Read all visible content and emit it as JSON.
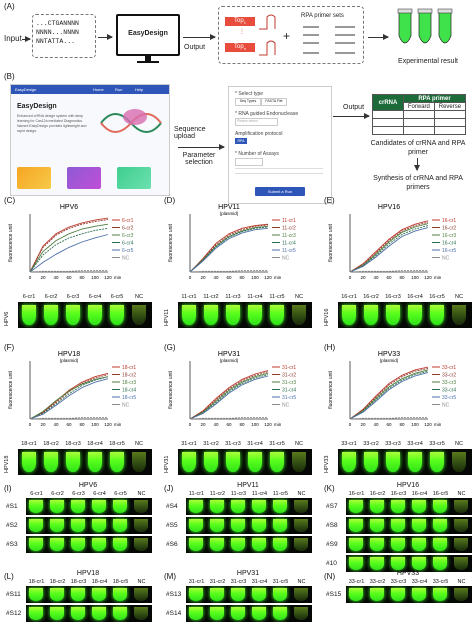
{
  "panelA": {
    "label": "(A)",
    "input_label": "Input",
    "seq_lines": [
      "...CTGANNNN",
      "NNNN...NNNN",
      "NNTATTA..."
    ],
    "tool_name": "EasyDesign",
    "output_label": "Output",
    "top1": "Top",
    "top1_sub": "1",
    "topn": "Top",
    "topn_sub": "n",
    "rpa_sets": "RPA primer sets",
    "experimental": "Experimental result"
  },
  "panelB": {
    "label": "(B)",
    "app_brand": "EasyDesign",
    "app_title": "EasyDesign",
    "app_desc": "Enhanced crRNA design system with deep learning for Cas12a mediated Diagnostics. Named EasyDesign provides lightweight and rapid design.",
    "nav_items": [
      "Home",
      "Run",
      "Help"
    ],
    "seq_upload": "Sequence upload",
    "param_sel": "Parameter selection",
    "form_items": [
      "* Select type",
      "* RNA guided Endonuclease",
      "Amplification protocol",
      "* Number of Assays"
    ],
    "form_tabs": [
      "Seq Types",
      "FASTA File"
    ],
    "form_placeholder": "Please select",
    "form_rpa": "RPA",
    "form_submit": "Submit a Run",
    "output_label": "Output",
    "table_head1": "crRNA",
    "table_head2": "RPA primer",
    "table_sub": [
      "Forward",
      "Reverse"
    ],
    "candidates": "Candidates of crRNA and RPA primer",
    "synthesis": "Synthesis of crRNA and RPA primers"
  },
  "charts": [
    {
      "label": "(C)",
      "title": "HPV6",
      "subtitle": "",
      "series_prefix": "6-cr",
      "names": [
        "6-cr1",
        "6-cr2",
        "6-cr3",
        "6-cr4",
        "6-cr5",
        "NC"
      ],
      "gel_label": "HPV6",
      "lanes": [
        "6-cr1",
        "6-cr2",
        "6-cr3",
        "6-cr4",
        "6-cr5",
        "NC"
      ]
    },
    {
      "label": "(D)",
      "title": "HPV11",
      "subtitle": "(plasmid)",
      "names": [
        "11-cr1",
        "11-cr2",
        "11-cr3",
        "11-cr4",
        "11-cr5",
        "NC"
      ],
      "gel_label": "HPV11",
      "lanes": [
        "11-cr1",
        "11-cr2",
        "11-cr3",
        "11-cr4",
        "11-cr5",
        "NC"
      ]
    },
    {
      "label": "(E)",
      "title": "HPV16",
      "subtitle": "",
      "names": [
        "16-cr1",
        "16-cr2",
        "16-cr3",
        "16-cr4",
        "16-cr5",
        "NC"
      ],
      "gel_label": "HPV16",
      "lanes": [
        "16-cr1",
        "16-cr2",
        "16-cr3",
        "16-cr4",
        "16-cr5",
        "NC"
      ]
    },
    {
      "label": "(F)",
      "title": "HPV18",
      "subtitle": "(plasmid)",
      "names": [
        "18-cr1",
        "18-cr2",
        "18-cr3",
        "18-cr4",
        "18-cr5",
        "NC"
      ],
      "gel_label": "HPV18",
      "lanes": [
        "18-cr1",
        "18-cr2",
        "18-cr3",
        "18-cr4",
        "18-cr5",
        "NC"
      ]
    },
    {
      "label": "(G)",
      "title": "HPV31",
      "subtitle": "(plasmid)",
      "names": [
        "31-cr1",
        "31-cr2",
        "31-cr3",
        "31-cr4",
        "31-cr5",
        "NC"
      ],
      "gel_label": "HPV31",
      "lanes": [
        "31-cr1",
        "31-cr2",
        "31-cr3",
        "31-cr4",
        "31-cr5",
        "NC"
      ]
    },
    {
      "label": "(H)",
      "title": "HPV33",
      "subtitle": "(plasmid)",
      "names": [
        "33-cr1",
        "33-cr2",
        "33-cr3",
        "33-cr4",
        "33-cr5",
        "NC"
      ],
      "gel_label": "HPV33",
      "lanes": [
        "33-cr1",
        "33-cr2",
        "33-cr3",
        "33-cr4",
        "33-cr5",
        "NC"
      ]
    }
  ],
  "chart_data": [
    {
      "type": "line",
      "title": "HPV6",
      "xlabel": "min",
      "ylabel": "fluorescence unit",
      "x": [
        0,
        20,
        40,
        60,
        80,
        100,
        120
      ],
      "xlim": [
        0,
        120
      ],
      "series": [
        {
          "name": "6-cr1",
          "values": [
            0,
            38,
            56,
            66,
            72,
            76,
            79
          ]
        },
        {
          "name": "6-cr2",
          "values": [
            0,
            36,
            54,
            64,
            70,
            74,
            77
          ]
        },
        {
          "name": "6-cr3",
          "values": [
            0,
            30,
            46,
            56,
            63,
            67,
            70
          ]
        },
        {
          "name": "6-cr4",
          "values": [
            0,
            25,
            40,
            50,
            56,
            61,
            64
          ]
        },
        {
          "name": "6-cr5",
          "values": [
            0,
            14,
            26,
            36,
            44,
            50,
            55
          ]
        },
        {
          "name": "NC",
          "values": [
            0,
            1,
            1,
            1,
            2,
            2,
            2
          ]
        }
      ]
    },
    {
      "type": "line",
      "title": "HPV11",
      "xlabel": "min",
      "ylabel": "fluorescence unit",
      "x": [
        0,
        20,
        40,
        60,
        80,
        100,
        120
      ],
      "xlim": [
        0,
        120
      ],
      "series": [
        {
          "name": "11-cr1",
          "values": [
            0,
            20,
            42,
            56,
            64,
            68,
            70
          ]
        },
        {
          "name": "11-cr2",
          "values": [
            0,
            19,
            40,
            54,
            62,
            67,
            69
          ]
        },
        {
          "name": "11-cr3",
          "values": [
            0,
            18,
            38,
            52,
            60,
            65,
            67
          ]
        },
        {
          "name": "11-cr4",
          "values": [
            0,
            17,
            37,
            51,
            59,
            64,
            66
          ]
        },
        {
          "name": "11-cr5",
          "values": [
            0,
            16,
            35,
            49,
            57,
            62,
            64
          ]
        },
        {
          "name": "NC",
          "values": [
            0,
            1,
            1,
            1,
            2,
            2,
            2
          ]
        }
      ]
    },
    {
      "type": "line",
      "title": "HPV16",
      "xlabel": "min",
      "ylabel": "fluorescence unit",
      "x": [
        0,
        20,
        40,
        60,
        80,
        100,
        120
      ],
      "xlim": [
        0,
        120
      ],
      "series": [
        {
          "name": "16-cr1",
          "values": [
            0,
            12,
            30,
            48,
            62,
            70,
            75
          ]
        },
        {
          "name": "16-cr2",
          "values": [
            0,
            11,
            28,
            46,
            60,
            68,
            73
          ]
        },
        {
          "name": "16-cr3",
          "values": [
            0,
            10,
            26,
            44,
            58,
            66,
            71
          ]
        },
        {
          "name": "16-cr4",
          "values": [
            0,
            9,
            24,
            41,
            55,
            63,
            68
          ]
        },
        {
          "name": "16-cr5",
          "values": [
            0,
            8,
            22,
            38,
            52,
            60,
            65
          ]
        },
        {
          "name": "NC",
          "values": [
            0,
            1,
            1,
            1,
            2,
            2,
            2
          ]
        }
      ]
    },
    {
      "type": "line",
      "title": "HPV18",
      "xlabel": "min",
      "ylabel": "fluorescence unit",
      "x": [
        0,
        20,
        40,
        60,
        80,
        100,
        120
      ],
      "xlim": [
        0,
        120
      ],
      "series": [
        {
          "name": "18-cr1",
          "values": [
            0,
            10,
            26,
            42,
            54,
            62,
            67
          ]
        },
        {
          "name": "18-cr2",
          "values": [
            0,
            9,
            24,
            40,
            52,
            60,
            65
          ]
        },
        {
          "name": "18-cr3",
          "values": [
            0,
            11,
            27,
            41,
            51,
            58,
            62
          ]
        },
        {
          "name": "18-cr4",
          "values": [
            0,
            8,
            22,
            37,
            49,
            57,
            62
          ]
        },
        {
          "name": "18-cr5",
          "values": [
            0,
            7,
            20,
            34,
            46,
            54,
            59
          ]
        },
        {
          "name": "NC",
          "values": [
            0,
            1,
            1,
            1,
            2,
            2,
            2
          ]
        }
      ]
    },
    {
      "type": "line",
      "title": "HPV31",
      "xlabel": "min",
      "ylabel": "fluorescence unit",
      "x": [
        0,
        20,
        40,
        60,
        80,
        100,
        120
      ],
      "xlim": [
        0,
        120
      ],
      "series": [
        {
          "name": "31-cr1",
          "values": [
            0,
            12,
            30,
            46,
            58,
            66,
            71
          ]
        },
        {
          "name": "31-cr2",
          "values": [
            0,
            11,
            28,
            44,
            56,
            64,
            69
          ]
        },
        {
          "name": "31-cr3",
          "values": [
            0,
            10,
            26,
            42,
            54,
            62,
            67
          ]
        },
        {
          "name": "31-cr4",
          "values": [
            0,
            9,
            24,
            40,
            52,
            60,
            65
          ]
        },
        {
          "name": "31-cr5",
          "values": [
            0,
            8,
            22,
            38,
            50,
            58,
            63
          ]
        },
        {
          "name": "NC",
          "values": [
            0,
            1,
            1,
            1,
            2,
            2,
            2
          ]
        }
      ]
    },
    {
      "type": "line",
      "title": "HPV33",
      "xlabel": "min",
      "ylabel": "fluorescence unit",
      "x": [
        0,
        20,
        40,
        60,
        80,
        100,
        120
      ],
      "xlim": [
        0,
        120
      ],
      "series": [
        {
          "name": "33-cr1",
          "values": [
            0,
            14,
            34,
            52,
            64,
            72,
            76
          ]
        },
        {
          "name": "33-cr2",
          "values": [
            0,
            13,
            32,
            50,
            62,
            70,
            74
          ]
        },
        {
          "name": "33-cr3",
          "values": [
            0,
            12,
            30,
            47,
            59,
            67,
            72
          ]
        },
        {
          "name": "33-cr4",
          "values": [
            0,
            11,
            28,
            45,
            57,
            65,
            70
          ]
        },
        {
          "name": "33-cr5",
          "values": [
            0,
            10,
            26,
            43,
            55,
            63,
            68
          ]
        },
        {
          "name": "NC",
          "values": [
            0,
            1,
            1,
            1,
            2,
            2,
            2
          ]
        }
      ]
    }
  ],
  "series_colors": [
    "#c0392b",
    "#8e3b2e",
    "#4f7f3f",
    "#2f6f4f",
    "#4d6fa8",
    "#8c8c8c"
  ],
  "axis_ticks": [
    "0",
    "20",
    "40",
    "60",
    "80",
    "100",
    "120"
  ],
  "xunit": "min",
  "yaxis_label": "fluorescence unit",
  "samples": [
    {
      "label": "(I)",
      "title": "HPV6",
      "lanes": [
        "6-cr1",
        "6-cr2",
        "6-cr3",
        "6-cr4",
        "6-cr5",
        "NC"
      ],
      "rows": [
        "#S1",
        "#S2",
        "#S3"
      ]
    },
    {
      "label": "(J)",
      "title": "HPV11",
      "lanes": [
        "11-cr1",
        "11-cr2",
        "11-cr3",
        "11-cr4",
        "11-cr5",
        "NC"
      ],
      "rows": [
        "#S4",
        "#S5",
        "#S6"
      ]
    },
    {
      "label": "(K)",
      "title": "HPV16",
      "lanes": [
        "16-cr1",
        "16-cr2",
        "16-cr3",
        "16-cr4",
        "16-cr5",
        "NC"
      ],
      "rows": [
        "#S7",
        "#S8",
        "#S9",
        "#10"
      ]
    },
    {
      "label": "(L)",
      "title": "HPV18",
      "lanes": [
        "18-cr1",
        "18-cr2",
        "18-cr3",
        "18-cr4",
        "18-cr5",
        "NC"
      ],
      "rows": [
        "#S11",
        "#S12"
      ]
    },
    {
      "label": "(M)",
      "title": "HPV31",
      "lanes": [
        "31-cr1",
        "31-cr2",
        "31-cr3",
        "31-cr4",
        "31-cr5",
        "NC"
      ],
      "rows": [
        "#S13",
        "#S14"
      ]
    },
    {
      "label": "(N)",
      "title": "HPV33",
      "lanes": [
        "33-cr1",
        "33-cr2",
        "33-cr3",
        "33-cr4",
        "33-cr5",
        "NC"
      ],
      "rows": [
        "#S15"
      ]
    }
  ]
}
